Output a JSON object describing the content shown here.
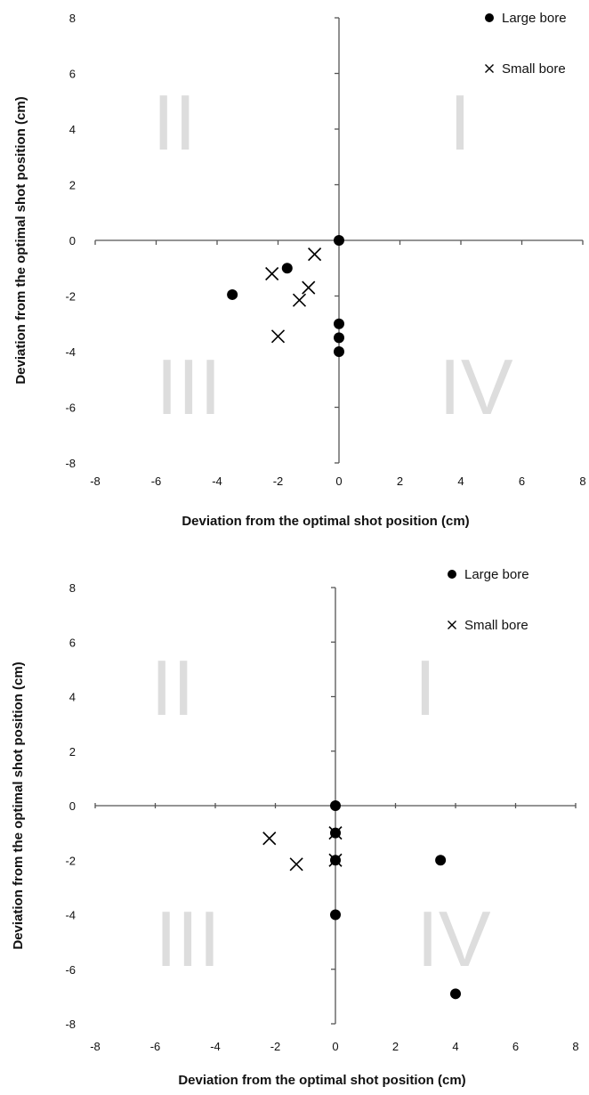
{
  "chart_data": [
    {
      "type": "scatter",
      "title": "",
      "xlabel": "Deviation from the optimal shot position (cm)",
      "ylabel": "Deviation from the optimal shot position (cm)",
      "xlim": [
        -8,
        8
      ],
      "ylim": [
        -8,
        8
      ],
      "xticks": [
        "-8",
        "-6",
        "-4",
        "-2",
        "0",
        "2",
        "4",
        "6",
        "8"
      ],
      "yticks": [
        "8",
        "6",
        "4",
        "2",
        "0",
        "-2",
        "-4",
        "-6",
        "-8"
      ],
      "grid": false,
      "legend_position": "top-right",
      "quadrant_labels": [
        "I",
        "II",
        "III",
        "IV"
      ],
      "series": [
        {
          "name": "Large bore",
          "marker": "circle",
          "points": [
            {
              "x": 0,
              "y": 0
            },
            {
              "x": -1.7,
              "y": -1
            },
            {
              "x": -3.5,
              "y": -1.95
            },
            {
              "x": 0,
              "y": -3
            },
            {
              "x": 0,
              "y": -3.5
            },
            {
              "x": 0,
              "y": -4
            }
          ]
        },
        {
          "name": "Small bore",
          "marker": "cross",
          "points": [
            {
              "x": -0.8,
              "y": -0.5
            },
            {
              "x": -2.2,
              "y": -1.2
            },
            {
              "x": -1,
              "y": -1.7
            },
            {
              "x": -1.3,
              "y": -2.15
            },
            {
              "x": -2,
              "y": -3.45
            }
          ]
        }
      ]
    },
    {
      "type": "scatter",
      "title": "",
      "xlabel": "Deviation from the optimal shot position (cm)",
      "ylabel": "Deviation from  the optimal shot position (cm)",
      "xlim": [
        -8,
        8
      ],
      "ylim": [
        -8,
        8
      ],
      "xticks": [
        "-8",
        "-6",
        "-4",
        "-2",
        "0",
        "2",
        "4",
        "6",
        "8"
      ],
      "yticks": [
        "8",
        "6",
        "4",
        "2",
        "0",
        "-2",
        "-4",
        "-6",
        "-8"
      ],
      "grid": false,
      "legend_position": "top-right",
      "quadrant_labels": [
        "I",
        "II",
        "III",
        "IV"
      ],
      "series": [
        {
          "name": "Large bore",
          "marker": "circle",
          "points": [
            {
              "x": 0,
              "y": 0
            },
            {
              "x": 0,
              "y": -1
            },
            {
              "x": 0,
              "y": -2
            },
            {
              "x": 3.5,
              "y": -2
            },
            {
              "x": 0,
              "y": -4
            },
            {
              "x": 4,
              "y": -6.9
            }
          ]
        },
        {
          "name": "Small bore",
          "marker": "cross",
          "points": [
            {
              "x": 0,
              "y": -1
            },
            {
              "x": 0,
              "y": -2
            },
            {
              "x": -2.2,
              "y": -1.2
            },
            {
              "x": -1.3,
              "y": -2.15
            }
          ]
        }
      ]
    }
  ]
}
